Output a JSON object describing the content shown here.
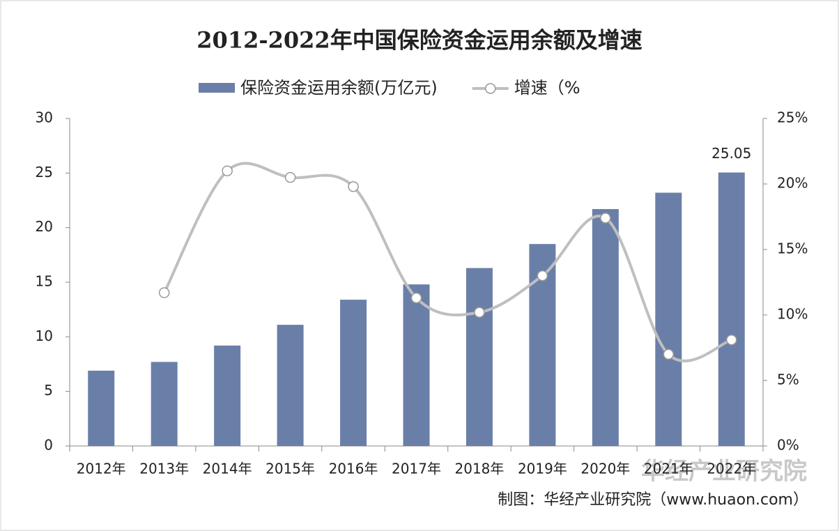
{
  "chart_data": {
    "type": "bar_line",
    "title": "2012-2022年中国保险资金运用余额及增速",
    "categories": [
      "2012年",
      "2013年",
      "2014年",
      "2015年",
      "2016年",
      "2017年",
      "2018年",
      "2019年",
      "2020年",
      "2021年",
      "2022年"
    ],
    "series": [
      {
        "name": "保险资金运用余额(万亿元)",
        "type": "bar",
        "color": "#6a7fa8",
        "values": [
          6.9,
          7.7,
          9.2,
          11.1,
          13.4,
          14.8,
          16.3,
          18.5,
          21.7,
          23.2,
          25.05
        ],
        "value_labels": [
          null,
          null,
          null,
          null,
          null,
          null,
          null,
          null,
          null,
          null,
          "25.05"
        ]
      },
      {
        "name": "增速（%",
        "type": "line",
        "axis": "y2",
        "color": "#bfbfbf",
        "values": [
          null,
          11.7,
          21.0,
          20.5,
          19.8,
          11.3,
          10.2,
          13.0,
          17.4,
          7.0,
          8.1
        ]
      }
    ],
    "ylim": [
      0,
      30
    ],
    "yticks": [
      0,
      5,
      10,
      15,
      20,
      25,
      30
    ],
    "y2lim": [
      0,
      25
    ],
    "y2ticks": [
      {
        "value": 0,
        "label": "0%"
      },
      {
        "value": 5,
        "label": "5%"
      },
      {
        "value": 10,
        "label": "10%"
      },
      {
        "value": 15,
        "label": "15%"
      },
      {
        "value": 20,
        "label": "20%"
      },
      {
        "value": 25,
        "label": "25%"
      }
    ],
    "source": "制图：华经产业研究院（www.huaon.com）",
    "watermark": "华经产业研究院"
  }
}
